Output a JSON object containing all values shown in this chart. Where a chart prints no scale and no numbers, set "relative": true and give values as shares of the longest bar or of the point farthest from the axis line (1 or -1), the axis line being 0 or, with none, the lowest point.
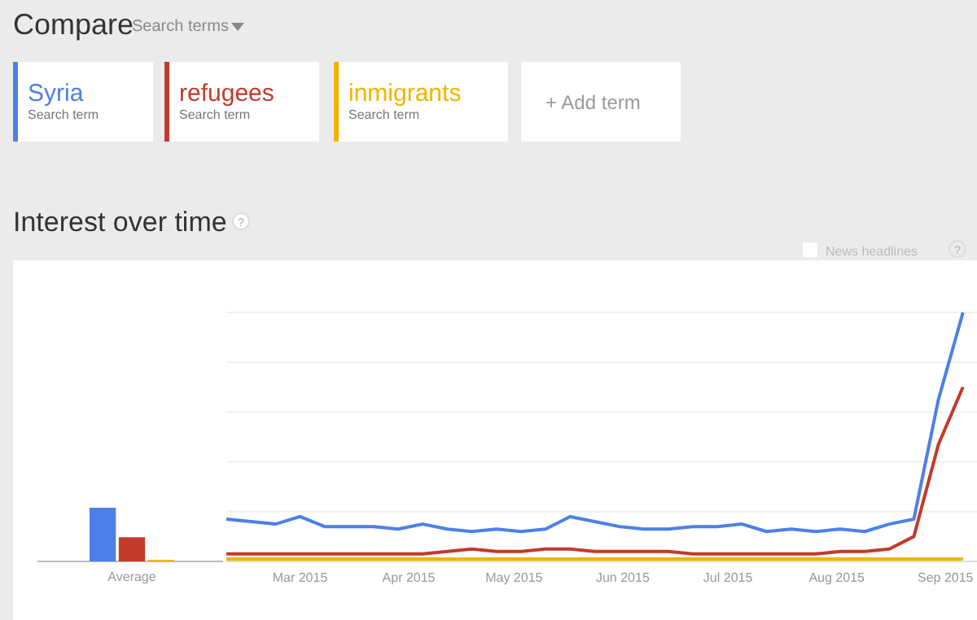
{
  "chart_data": [
    {
      "type": "bar",
      "categories": [
        "Average"
      ],
      "relative": true,
      "series": [
        {
          "color": "#4d7fe8",
          "values": [
            1
          ]
        },
        {
          "color": "#c33a2b",
          "values": [
            0.45
          ]
        },
        {
          "color": "#f0b400",
          "values": [
            0.03
          ]
        }
      ]
    },
    {
      "type": "line",
      "title": "Interest over time",
      "relative": true,
      "grid": true,
      "legend": "top left",
      "annotations": [
        "Compare",
        "Search terms",
        "Search term",
        "Search term",
        "Search term",
        "+ Add term",
        "News headlines",
        "?",
        "?"
      ],
      "x": [
        "2015-02-08",
        "2015-02-15",
        "2015-02-22",
        "2015-03-01",
        "2015-03-08",
        "2015-03-15",
        "2015-03-22",
        "2015-03-29",
        "2015-04-05",
        "2015-04-12",
        "2015-04-19",
        "2015-04-26",
        "2015-05-03",
        "2015-05-10",
        "2015-05-17",
        "2015-05-24",
        "2015-05-31",
        "2015-06-07",
        "2015-06-14",
        "2015-06-21",
        "2015-06-28",
        "2015-07-05",
        "2015-07-12",
        "2015-07-19",
        "2015-07-26",
        "2015-08-02",
        "2015-08-09",
        "2015-08-16",
        "2015-08-23",
        "2015-08-30",
        "2015-09-06"
      ],
      "xlim": [
        "2015-02-08",
        "2015-09-10"
      ],
      "xticks": [
        {
          "value": "2015-03-01",
          "label": "Mar 2015"
        },
        {
          "value": "2015-04-01",
          "label": "Apr 2015"
        },
        {
          "value": "2015-05-01",
          "label": "May 2015"
        },
        {
          "value": "2015-06-01",
          "label": "Jun 2015"
        },
        {
          "value": "2015-07-01",
          "label": "Jul 2015"
        },
        {
          "value": "2015-08-01",
          "label": "Aug 2015"
        },
        {
          "value": "2015-09-01",
          "label": "Sep 2015"
        }
      ],
      "series": [
        {
          "name": "Syria",
          "color": "#4d7fe8",
          "values": [
            0.17,
            0.16,
            0.15,
            0.18,
            0.14,
            0.14,
            0.14,
            0.13,
            0.15,
            0.13,
            0.12,
            0.13,
            0.12,
            0.13,
            0.18,
            0.16,
            0.14,
            0.13,
            0.13,
            0.14,
            0.14,
            0.15,
            0.12,
            0.13,
            0.12,
            0.13,
            0.12,
            0.15,
            0.17,
            0.65,
            1
          ]
        },
        {
          "name": "refugees",
          "color": "#c33a2b",
          "values": [
            0.03,
            0.03,
            0.03,
            0.03,
            0.03,
            0.03,
            0.03,
            0.03,
            0.03,
            0.04,
            0.05,
            0.04,
            0.04,
            0.05,
            0.05,
            0.04,
            0.04,
            0.04,
            0.04,
            0.03,
            0.03,
            0.03,
            0.03,
            0.03,
            0.03,
            0.04,
            0.04,
            0.05,
            0.1,
            0.47,
            0.7
          ]
        },
        {
          "name": "inmigrants",
          "color": "#f0b400",
          "values": [
            0.01,
            0.01,
            0.01,
            0.01,
            0.01,
            0.01,
            0.01,
            0.01,
            0.01,
            0.01,
            0.01,
            0.01,
            0.01,
            0.01,
            0.01,
            0.01,
            0.01,
            0.01,
            0.01,
            0.01,
            0.01,
            0.01,
            0.01,
            0.01,
            0.01,
            0.01,
            0.01,
            0.01,
            0.01,
            0.01,
            0.01
          ]
        }
      ]
    }
  ]
}
